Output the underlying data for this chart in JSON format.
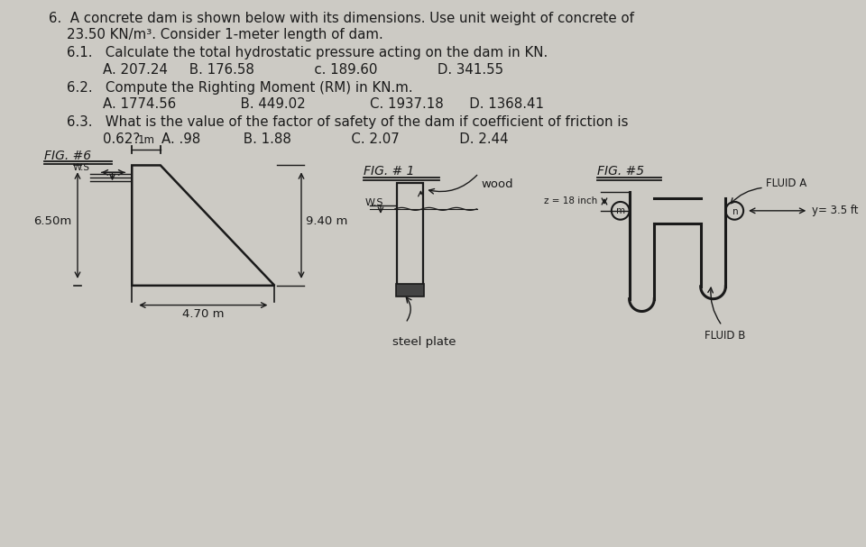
{
  "bg_color": "#cccac4",
  "text_color": "#1a1a1a",
  "line1": "6.  A concrete dam is shown below with its dimensions. Use unit weight of concrete of",
  "line2": "    23.50 KN/m³. Consider 1-meter length of dam.",
  "q61_num": "6.1.",
  "q61_text": "  Calculate the total hydrostatic pressure acting on the dam in KN.",
  "q61_ans": "        A. 207.24    B. 176.58           c. 189.60          D. 341.55",
  "q62_num": "6.2.",
  "q62_text": "  Compute the Righting Moment (RM) in KN.m.",
  "q62_ans": "        A. 1774.56             B. 449.02            C. 1937.18      D. 1368.41",
  "q63_num": "6.3.",
  "q63_text": "  What is the value of the factor of safety of the dam if coefficient of friction is",
  "q63_ans": "        0.62?     A. .98        B. 1.88           C. 2.07           D. 2.44",
  "fig6_title": "FIG. #6",
  "fig1_title": "FIG. # 1",
  "fig5_title": "FIG. #5"
}
